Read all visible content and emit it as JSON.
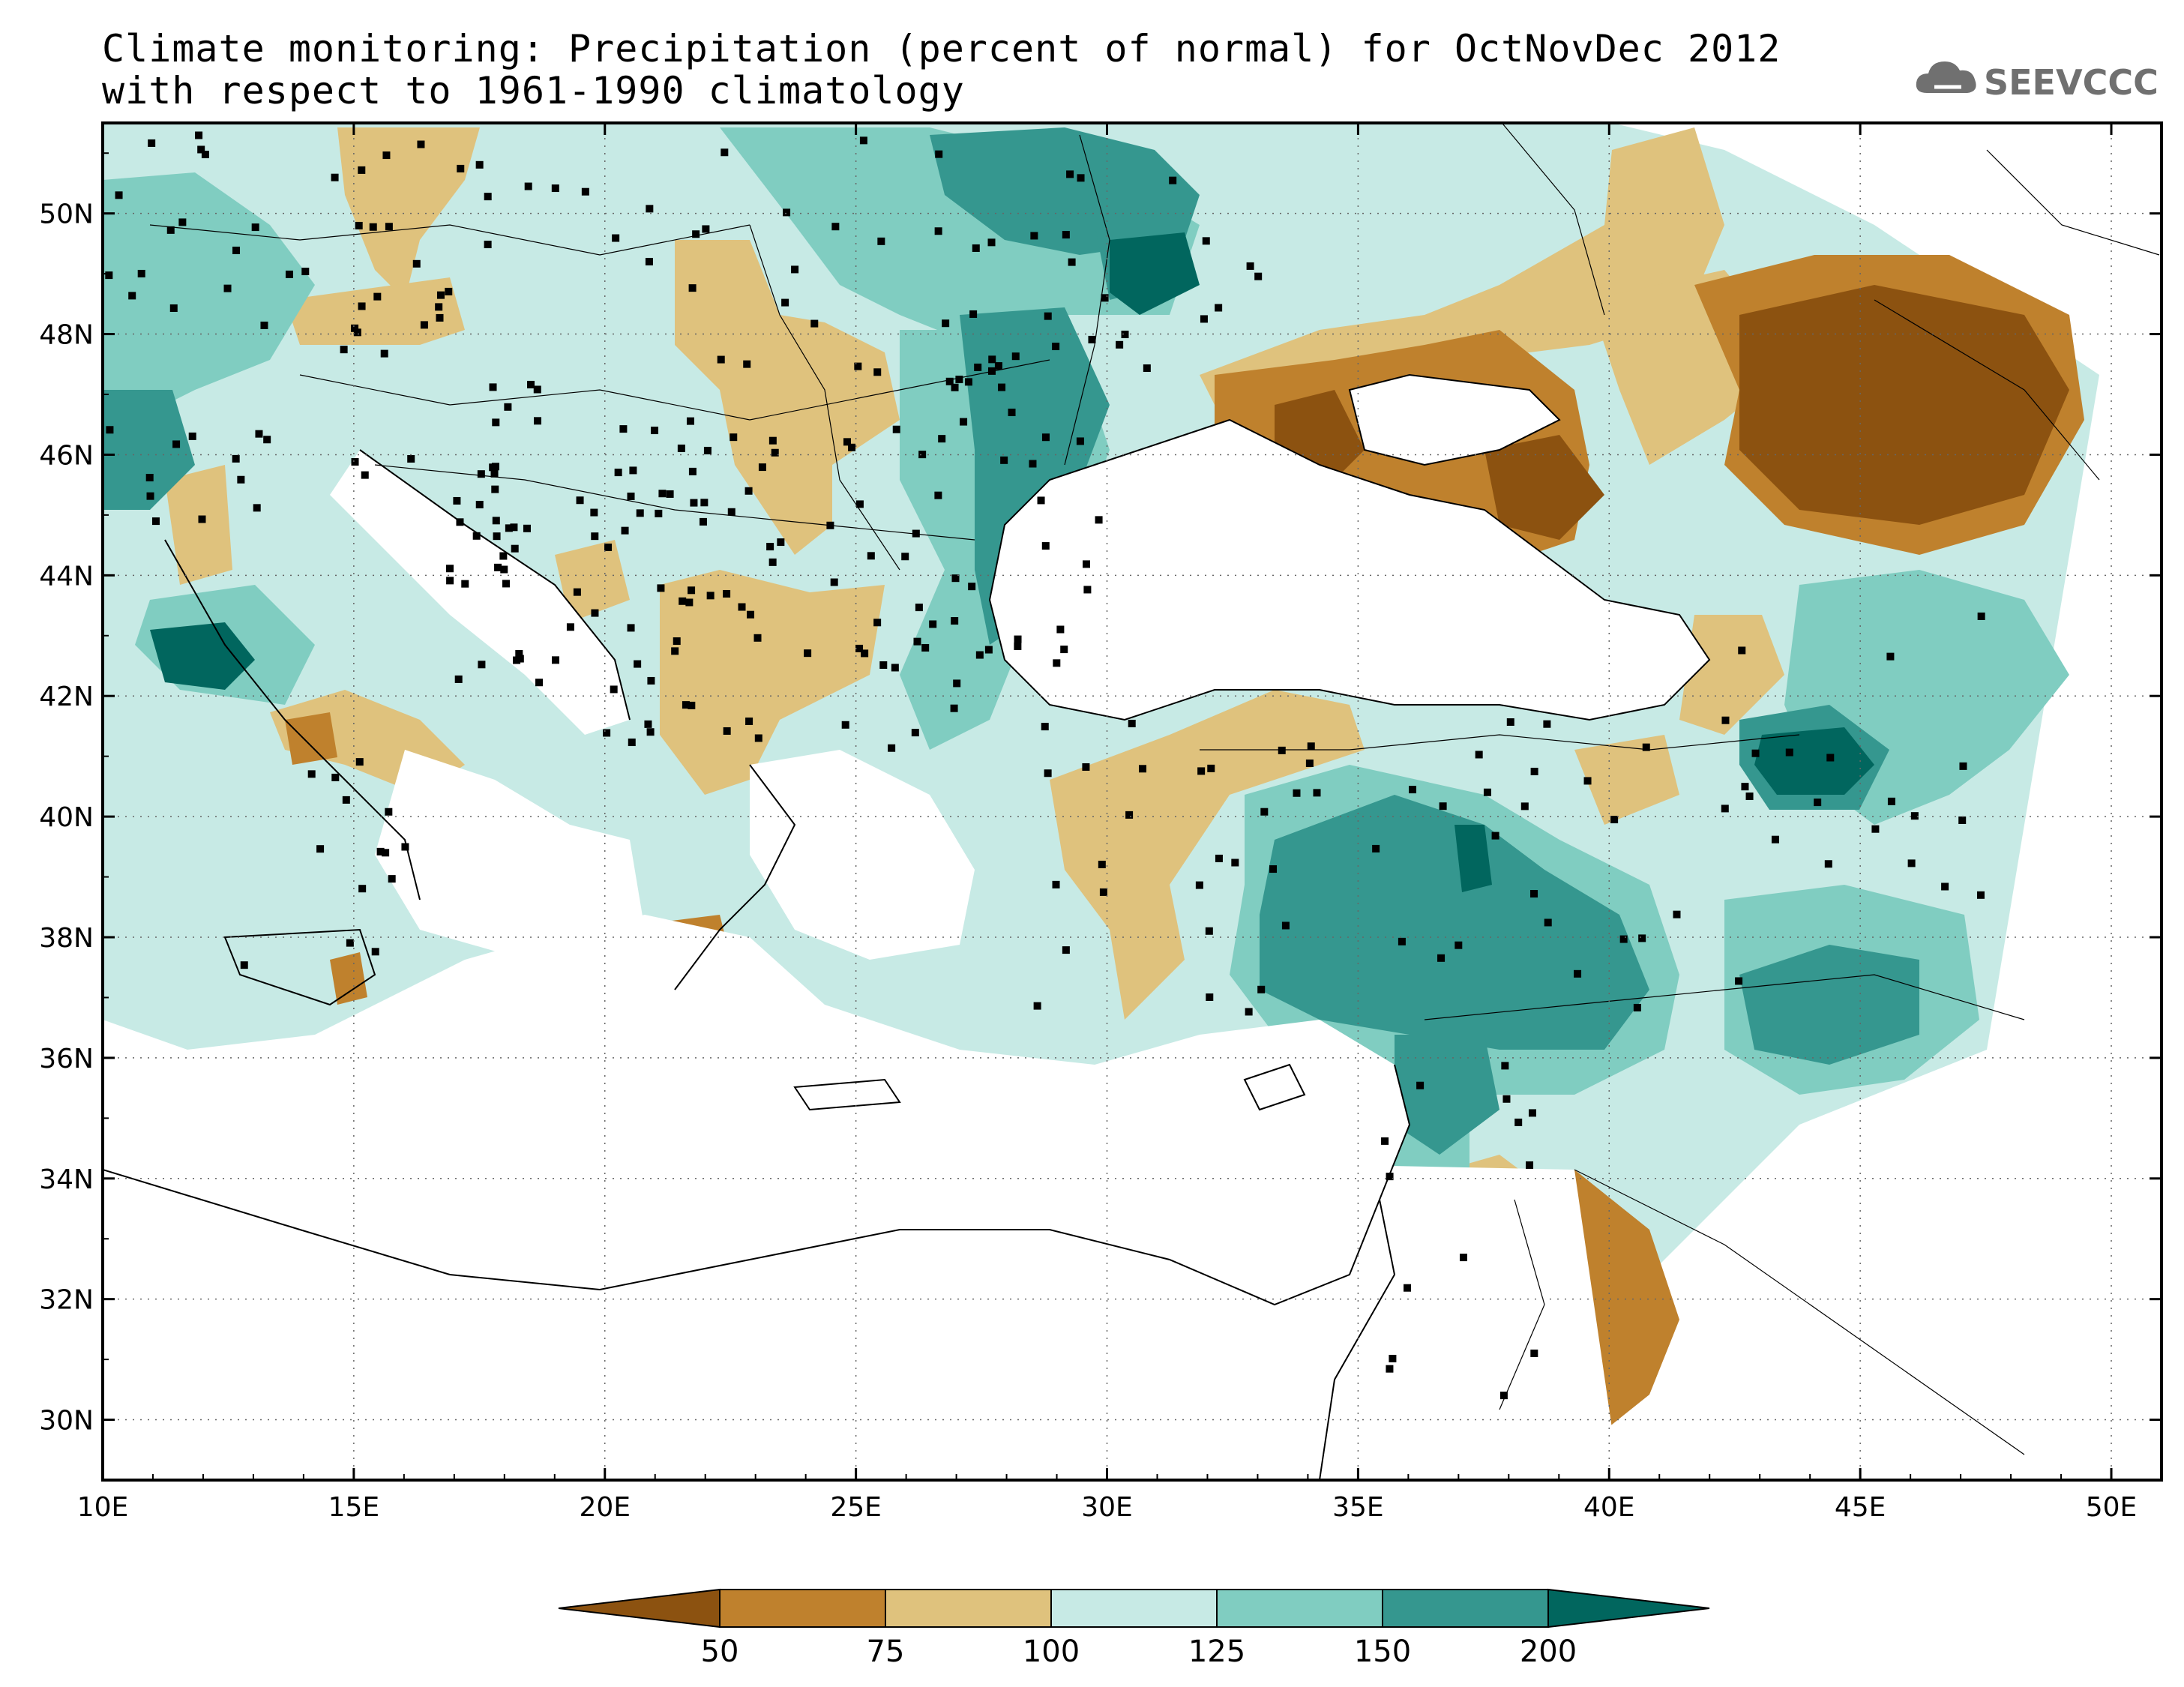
{
  "title": {
    "line1": "Climate monitoring: Precipitation (percent of normal) for OctNovDec 2012",
    "line2": "with respect to 1961-1990 climatology"
  },
  "logo": {
    "text": "SEEVCCC",
    "icon": "cloud-icon"
  },
  "axes": {
    "lon_ticks": [
      "10E",
      "15E",
      "20E",
      "25E",
      "30E",
      "35E",
      "40E",
      "45E",
      "50E"
    ],
    "lat_ticks": [
      "30N",
      "32N",
      "34N",
      "36N",
      "38N",
      "40N",
      "42N",
      "44N",
      "46N",
      "48N",
      "50N"
    ],
    "lon_range": [
      10,
      51
    ],
    "lat_range": [
      29,
      51.5
    ]
  },
  "colorbar": {
    "levels": [
      "50",
      "75",
      "100",
      "125",
      "150",
      "200"
    ],
    "colors": [
      "#8c5210",
      "#bf812d",
      "#dfc27d",
      "#c7eae5",
      "#80cdc1",
      "#35978f",
      "#01665e"
    ]
  },
  "sea_color": "#ffffff",
  "border_color": "#000000"
}
